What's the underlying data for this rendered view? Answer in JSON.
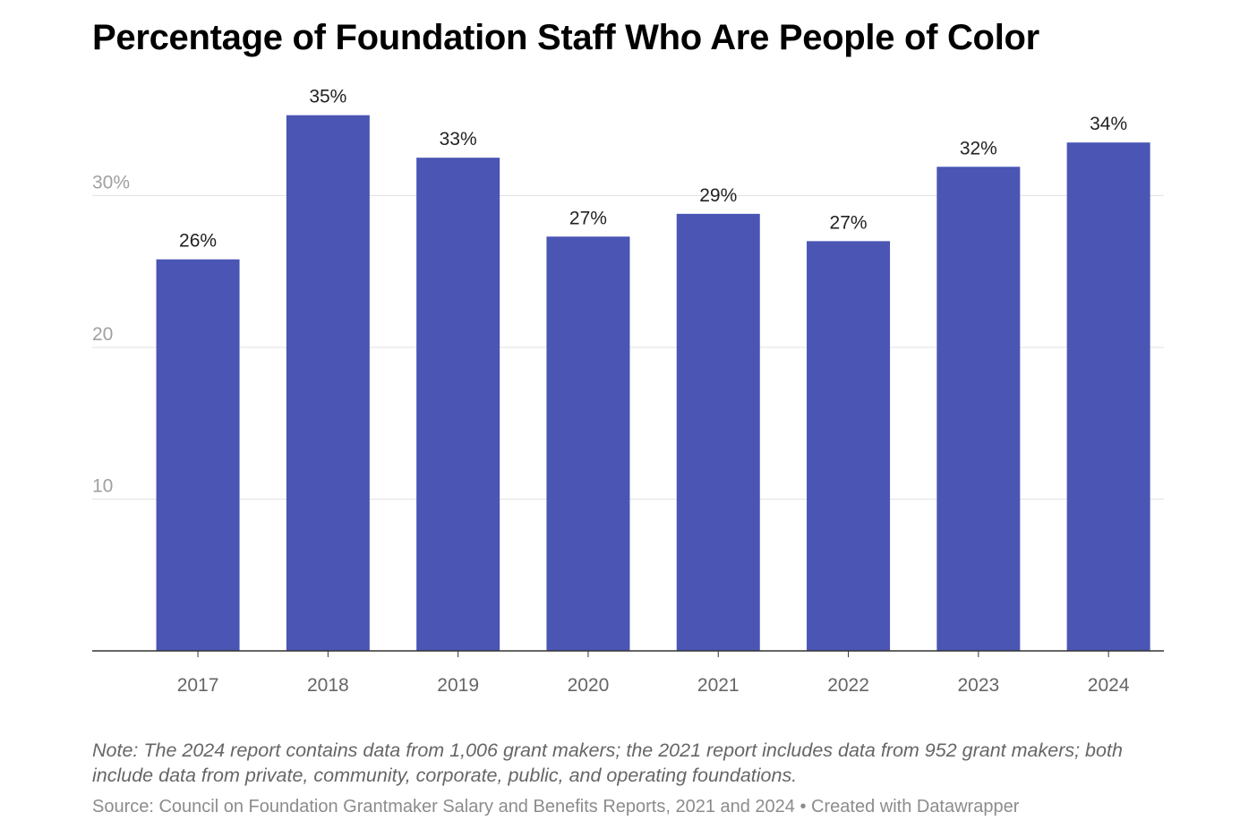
{
  "chart_data": {
    "type": "bar",
    "title": "Percentage of Foundation Staff Who Are People of Color",
    "categories": [
      "2017",
      "2018",
      "2019",
      "2020",
      "2021",
      "2022",
      "2023",
      "2024"
    ],
    "values": [
      25.8,
      35.3,
      32.5,
      27.3,
      28.8,
      27.0,
      31.9,
      33.5
    ],
    "data_labels": [
      "26%",
      "35%",
      "33%",
      "27%",
      "29%",
      "27%",
      "32%",
      "34%"
    ],
    "ylim": [
      0,
      36
    ],
    "yticks": [
      10,
      20,
      30
    ],
    "ytick_labels": [
      "10",
      "20",
      "30%"
    ],
    "xlabel": "",
    "ylabel": "",
    "grid": true,
    "bar_color": "#4a55b4"
  },
  "note": "Note: The 2024 report contains data from 1,006 grant makers; the 2021 report includes data from 952 grant makers; both include data from private, community, corporate, public, and operating foundations.",
  "source": "Source: Council on Foundation Grantmaker Salary and Benefits Reports, 2021 and 2024 • Created with Datawrapper"
}
